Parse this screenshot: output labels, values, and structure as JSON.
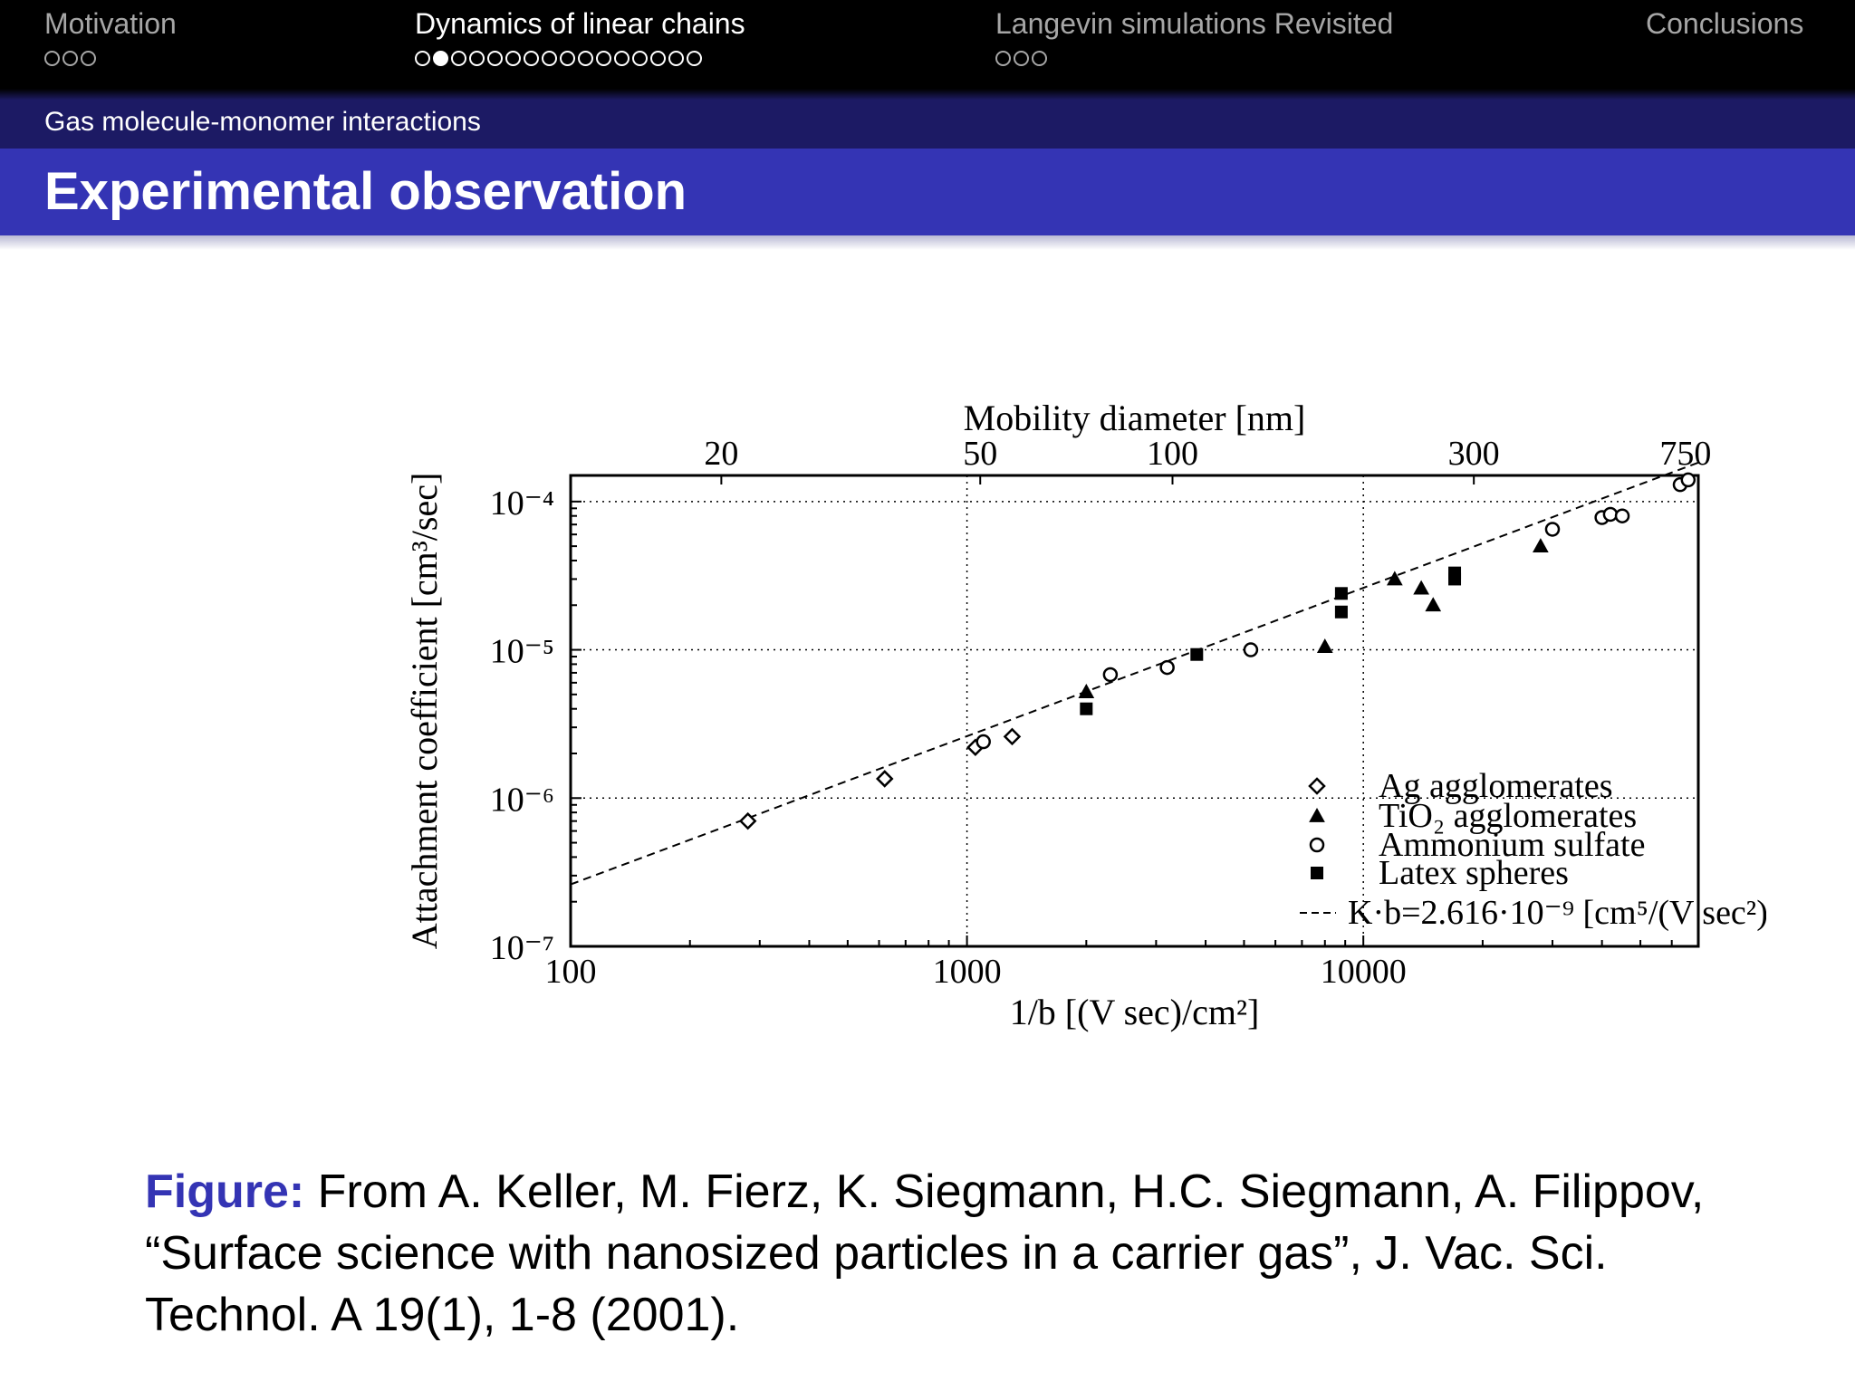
{
  "nav": {
    "sections": [
      {
        "title": "Motivation",
        "dots": 3,
        "current": -1,
        "active": false
      },
      {
        "title": "Dynamics of linear chains",
        "dots": 16,
        "current": 1,
        "active": true
      },
      {
        "title": "Langevin simulations Revisited",
        "dots": 3,
        "current": -1,
        "active": false
      },
      {
        "title": "Conclusions",
        "dots": 0,
        "current": -1,
        "active": false
      }
    ]
  },
  "subsection": "Gas molecule-monomer interactions",
  "frame_title": "Experimental observation",
  "chart_data": {
    "type": "scatter",
    "xscale": "log",
    "yscale": "log",
    "xlim": [
      100,
      70000
    ],
    "ylim": [
      1e-07,
      0.00015
    ],
    "xlabel": "1/b [(V sec)/cm²]",
    "ylabel": "Attachment coefficient [cm³/sec]",
    "top_axis_label": "Mobility diameter [nm]",
    "top_ticks": [
      {
        "label": "20",
        "x": 240
      },
      {
        "label": "50",
        "x": 1080
      },
      {
        "label": "100",
        "x": 3300
      },
      {
        "label": "300",
        "x": 19000
      },
      {
        "label": "750",
        "x": 65000
      }
    ],
    "x_ticks": [
      {
        "label": "100",
        "value": 100
      },
      {
        "label": "1000",
        "value": 1000
      },
      {
        "label": "10000",
        "value": 10000
      }
    ],
    "y_ticks": [
      {
        "label": "10⁻⁴",
        "value": 0.0001
      },
      {
        "label": "10⁻⁵",
        "value": 1e-05
      },
      {
        "label": "10⁻⁶",
        "value": 1e-06
      },
      {
        "label": "10⁻⁷",
        "value": 1e-07
      }
    ],
    "grid": "dotted",
    "legend_position": "bottom-right",
    "series": [
      {
        "name": "Ag agglomerates",
        "marker": "diamond-open",
        "points": [
          [
            280,
            7e-07
          ],
          [
            620,
            1.35e-06
          ],
          [
            1050,
            2.2e-06
          ],
          [
            1300,
            2.6e-06
          ]
        ]
      },
      {
        "name": "TiO₂ agglomerates",
        "marker": "triangle-filled",
        "points": [
          [
            2000,
            5.2e-06
          ],
          [
            8000,
            1.05e-05
          ],
          [
            12000,
            3e-05
          ],
          [
            14000,
            2.6e-05
          ],
          [
            15000,
            2e-05
          ],
          [
            28000,
            5e-05
          ]
        ]
      },
      {
        "name": "Ammonium sulfate",
        "marker": "circle-open",
        "points": [
          [
            1100,
            2.4e-06
          ],
          [
            2300,
            6.8e-06
          ],
          [
            3200,
            7.6e-06
          ],
          [
            5200,
            1e-05
          ],
          [
            30000,
            6.5e-05
          ],
          [
            40000,
            7.8e-05
          ],
          [
            42000,
            8.2e-05
          ],
          [
            45000,
            8e-05
          ],
          [
            63000,
            0.00013
          ],
          [
            66000,
            0.00014
          ]
        ]
      },
      {
        "name": "Latex spheres",
        "marker": "square-filled",
        "points": [
          [
            2000,
            4e-06
          ],
          [
            3800,
            9.3e-06
          ],
          [
            8800,
            1.8e-05
          ],
          [
            8800,
            2.4e-05
          ],
          [
            17000,
            3e-05
          ],
          [
            17000,
            3.3e-05
          ]
        ]
      }
    ],
    "fit_line": {
      "name": "K·b=2.616·10⁻⁹ [cm⁵/(V sec²)]",
      "slope": 2.616e-09
    }
  },
  "caption": {
    "label": "Figure:",
    "text": "From A. Keller, M. Fierz, K. Siegmann, H.C. Siegmann, A. Filippov, “Surface science with nanosized particles in a carrier gas”, J. Vac. Sci. Technol. A 19(1), 1-8 (2001)."
  }
}
